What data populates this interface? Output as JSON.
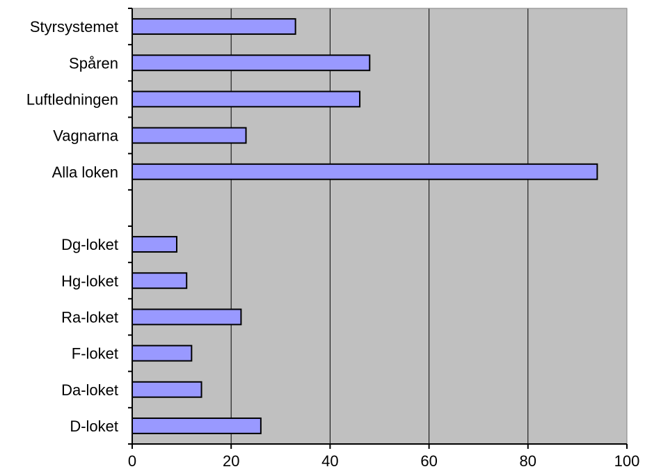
{
  "chart_data": {
    "type": "bar",
    "orientation": "horizontal",
    "title": "",
    "xlabel": "",
    "ylabel": "",
    "categories": [
      "Styrsystemet",
      "Spåren",
      "Luftledningen",
      "Vagnarna",
      "Alla loken",
      "",
      "Dg-loket",
      "Hg-loket",
      "Ra-loket",
      "F-loket",
      "Da-loket",
      "D-loket"
    ],
    "values": [
      33,
      48,
      46,
      23,
      94,
      null,
      9,
      11,
      22,
      12,
      14,
      26
    ],
    "xlim": [
      0,
      100
    ],
    "xticks": [
      "0",
      "20",
      "40",
      "60",
      "80",
      "100"
    ],
    "grid": "vertical",
    "legend": "none",
    "colors": {
      "bar_fill": "#9999ff",
      "bar_stroke": "#000000",
      "plot_background": "#c0c0c0",
      "gridline": "#000000"
    }
  }
}
